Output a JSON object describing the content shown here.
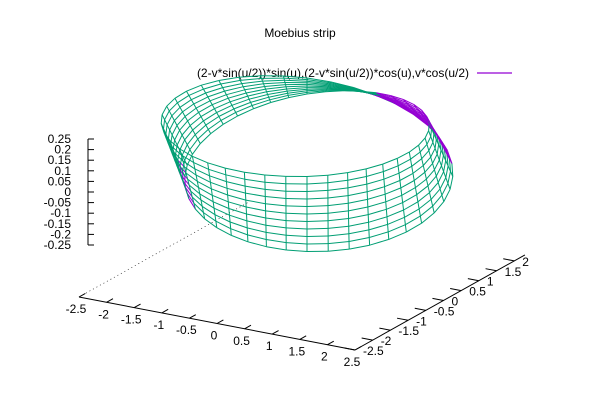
{
  "chart_data": {
    "type": "surface",
    "title": "Moebius strip",
    "legend": {
      "label": "(2-v*sin(u/2))*sin(u),(2-v*sin(u/2))*cos(u),v*cos(u/2)",
      "position": "top-right"
    },
    "parametric": {
      "x": "(2-v*sin(u/2))*sin(u)",
      "y": "(2-v*sin(u/2))*cos(u)",
      "z": "v*cos(u/2)",
      "u_range": [
        0,
        6.283185
      ],
      "v_range": [
        -0.25,
        0.25
      ]
    },
    "x_axis": {
      "range": [
        -2.5,
        2.5
      ],
      "ticks": [
        "-2.5",
        "-2",
        "-1.5",
        "-1",
        "-0.5",
        "0",
        "0.5",
        "1",
        "1.5",
        "2",
        "2.5"
      ]
    },
    "y_axis": {
      "range": [
        -2.5,
        2
      ],
      "ticks": [
        "-2.5",
        "-2",
        "-1.5",
        "-1",
        "-0.5",
        "0",
        "0.5",
        "1",
        "1.5",
        "2"
      ]
    },
    "z_axis": {
      "range": [
        -0.25,
        0.25
      ],
      "ticks": [
        "0.25",
        "0.2",
        "0.15",
        "0.1",
        "0.05",
        "0",
        "-0.05",
        "-0.1",
        "-0.15",
        "-0.2",
        "-0.25"
      ]
    },
    "colors": {
      "front": "#009e73",
      "back": "#9400d3",
      "axes": "#000000"
    },
    "grid": false
  }
}
